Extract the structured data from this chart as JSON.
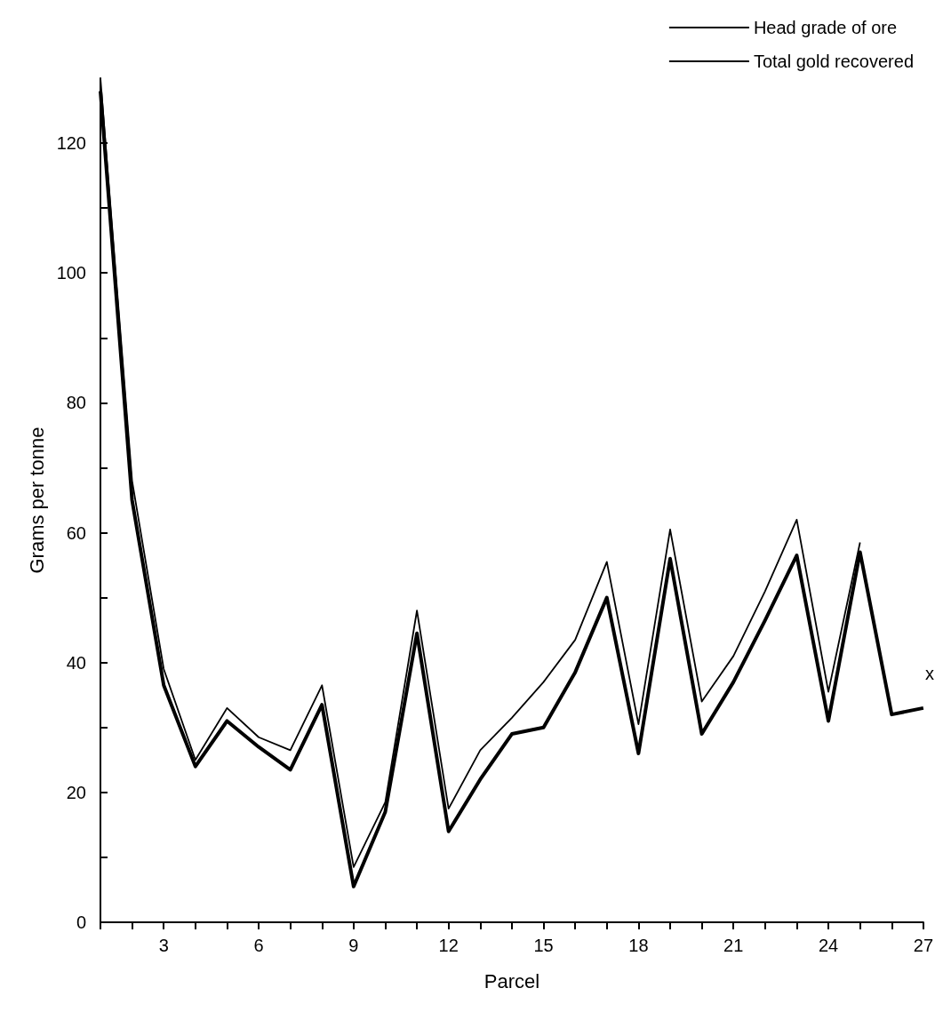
{
  "chart_data": {
    "type": "line",
    "xlabel": "Parcel",
    "ylabel": "Grams per tonne",
    "x": [
      1,
      2,
      3,
      4,
      5,
      6,
      7,
      8,
      9,
      10,
      11,
      12,
      13,
      14,
      15,
      16,
      17,
      18,
      19,
      20,
      21,
      22,
      23,
      24,
      25,
      26,
      27
    ],
    "series": [
      {
        "name": "Head grade of ore",
        "color": "#000000",
        "values": [
          130,
          68,
          39,
          25,
          33,
          28.5,
          26.5,
          36.5,
          8.5,
          18.5,
          48,
          17.5,
          26.5,
          31.5,
          37,
          43.5,
          55.5,
          30.5,
          60.5,
          34,
          41,
          51,
          62,
          35.5,
          58.5,
          null,
          null
        ]
      },
      {
        "name": "Total gold recovered",
        "color": "#000000",
        "values": [
          128,
          65,
          36.5,
          24,
          31,
          27,
          23.5,
          33.5,
          5.5,
          17,
          44.5,
          14,
          22,
          29,
          30,
          38.5,
          50,
          26,
          56,
          29,
          37,
          46.5,
          56.5,
          31,
          57,
          32,
          33
        ]
      }
    ],
    "xlim": [
      1,
      27
    ],
    "xticks": [
      {
        "value": 1,
        "label": null
      },
      {
        "value": 2,
        "label": null
      },
      3,
      {
        "value": 4,
        "label": null
      },
      {
        "value": 5,
        "label": null
      },
      6,
      {
        "value": 7,
        "label": null
      },
      {
        "value": 8,
        "label": null
      },
      9,
      {
        "value": 10,
        "label": null
      },
      {
        "value": 11,
        "label": null
      },
      12,
      {
        "value": 13,
        "label": null
      },
      {
        "value": 14,
        "label": null
      },
      15,
      {
        "value": 16,
        "label": null
      },
      {
        "value": 17,
        "label": null
      },
      18,
      {
        "value": 19,
        "label": null
      },
      {
        "value": 20,
        "label": null
      },
      21,
      {
        "value": 22,
        "label": null
      },
      {
        "value": 23,
        "label": null
      },
      24,
      {
        "value": 25,
        "label": null
      },
      {
        "value": 26,
        "label": null
      },
      27
    ],
    "ylim": [
      0,
      130
    ],
    "yticks": [
      0,
      {
        "value": 10,
        "label": null
      },
      20,
      {
        "value": 30,
        "label": null
      },
      40,
      {
        "value": 50,
        "label": null
      },
      60,
      {
        "value": 70,
        "label": null
      },
      80,
      {
        "value": 90,
        "label": null
      },
      100,
      {
        "value": 110,
        "label": null
      },
      120
    ],
    "annotations": [
      "x"
    ],
    "grid": false,
    "legend": "top right",
    "marker": "none",
    "line_style": "solid"
  }
}
